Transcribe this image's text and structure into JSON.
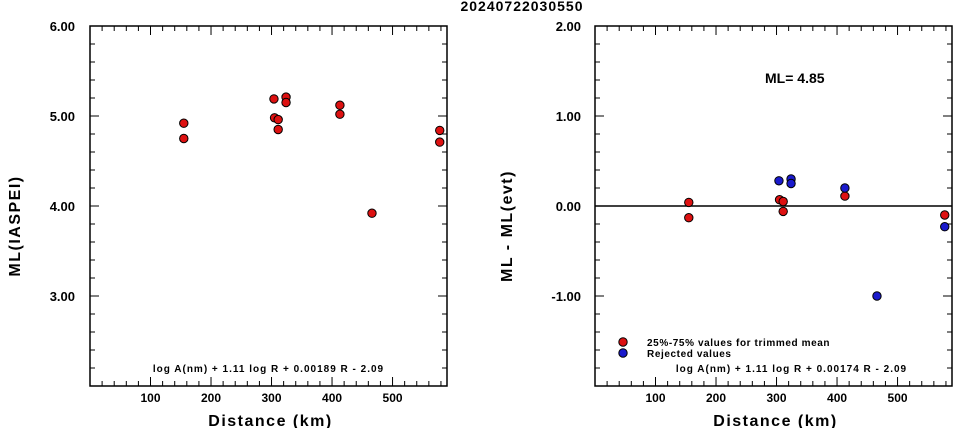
{
  "title": "20240722030550",
  "colors": {
    "accepted": "#dd1111",
    "rejected": "#1a1acc",
    "axis": "#000000"
  },
  "chart_data": [
    {
      "type": "scatter",
      "xlabel": "Distance (km)",
      "ylabel": "ML(IASPEI)",
      "xlim": [
        0,
        590
      ],
      "ylim": [
        2.0,
        6.0
      ],
      "xticks": [
        "100",
        "200",
        "300",
        "400",
        "500"
      ],
      "yticks": [
        "3.00",
        "4.00",
        "5.00",
        "6.00"
      ],
      "formula": "log A(nm) + 1.11 log R + 0.00189 R - 2.09",
      "series": [
        {
          "color_key": "accepted",
          "points": [
            {
              "x": 155,
              "y": 4.92
            },
            {
              "x": 155,
              "y": 4.75
            },
            {
              "x": 304,
              "y": 5.19
            },
            {
              "x": 305,
              "y": 4.98
            },
            {
              "x": 311,
              "y": 4.96
            },
            {
              "x": 311,
              "y": 4.85
            },
            {
              "x": 324,
              "y": 5.21
            },
            {
              "x": 324,
              "y": 5.15
            },
            {
              "x": 413,
              "y": 5.12
            },
            {
              "x": 413,
              "y": 5.02
            },
            {
              "x": 466,
              "y": 3.92
            },
            {
              "x": 578,
              "y": 4.84
            },
            {
              "x": 578,
              "y": 4.71
            }
          ]
        }
      ]
    },
    {
      "type": "scatter",
      "xlabel": "Distance (km)",
      "ylabel": "ML - ML(evt)",
      "xlim": [
        0,
        590
      ],
      "ylim": [
        -2.0,
        2.0
      ],
      "xticks": [
        "100",
        "200",
        "300",
        "400",
        "500"
      ],
      "yticks": [
        "-1.00",
        "0.00",
        "1.00",
        "2.00"
      ],
      "annotation": "ML= 4.85",
      "formula": "log A(nm) + 1.11 log R + 0.00174 R - 2.09",
      "zero_line": true,
      "legend": [
        "25%-75% values for trimmed mean",
        "Rejected values"
      ],
      "series": [
        {
          "name": "25%-75% values for trimmed mean",
          "color_key": "accepted",
          "points": [
            {
              "x": 155,
              "y": 0.04
            },
            {
              "x": 155,
              "y": -0.13
            },
            {
              "x": 305,
              "y": 0.07
            },
            {
              "x": 311,
              "y": 0.05
            },
            {
              "x": 311,
              "y": -0.06
            },
            {
              "x": 413,
              "y": 0.11
            },
            {
              "x": 578,
              "y": -0.1
            }
          ]
        },
        {
          "name": "Rejected values",
          "color_key": "rejected",
          "points": [
            {
              "x": 304,
              "y": 0.28
            },
            {
              "x": 324,
              "y": 0.3
            },
            {
              "x": 324,
              "y": 0.25
            },
            {
              "x": 413,
              "y": 0.2
            },
            {
              "x": 466,
              "y": -1.0
            },
            {
              "x": 578,
              "y": -0.23
            }
          ]
        }
      ]
    }
  ]
}
